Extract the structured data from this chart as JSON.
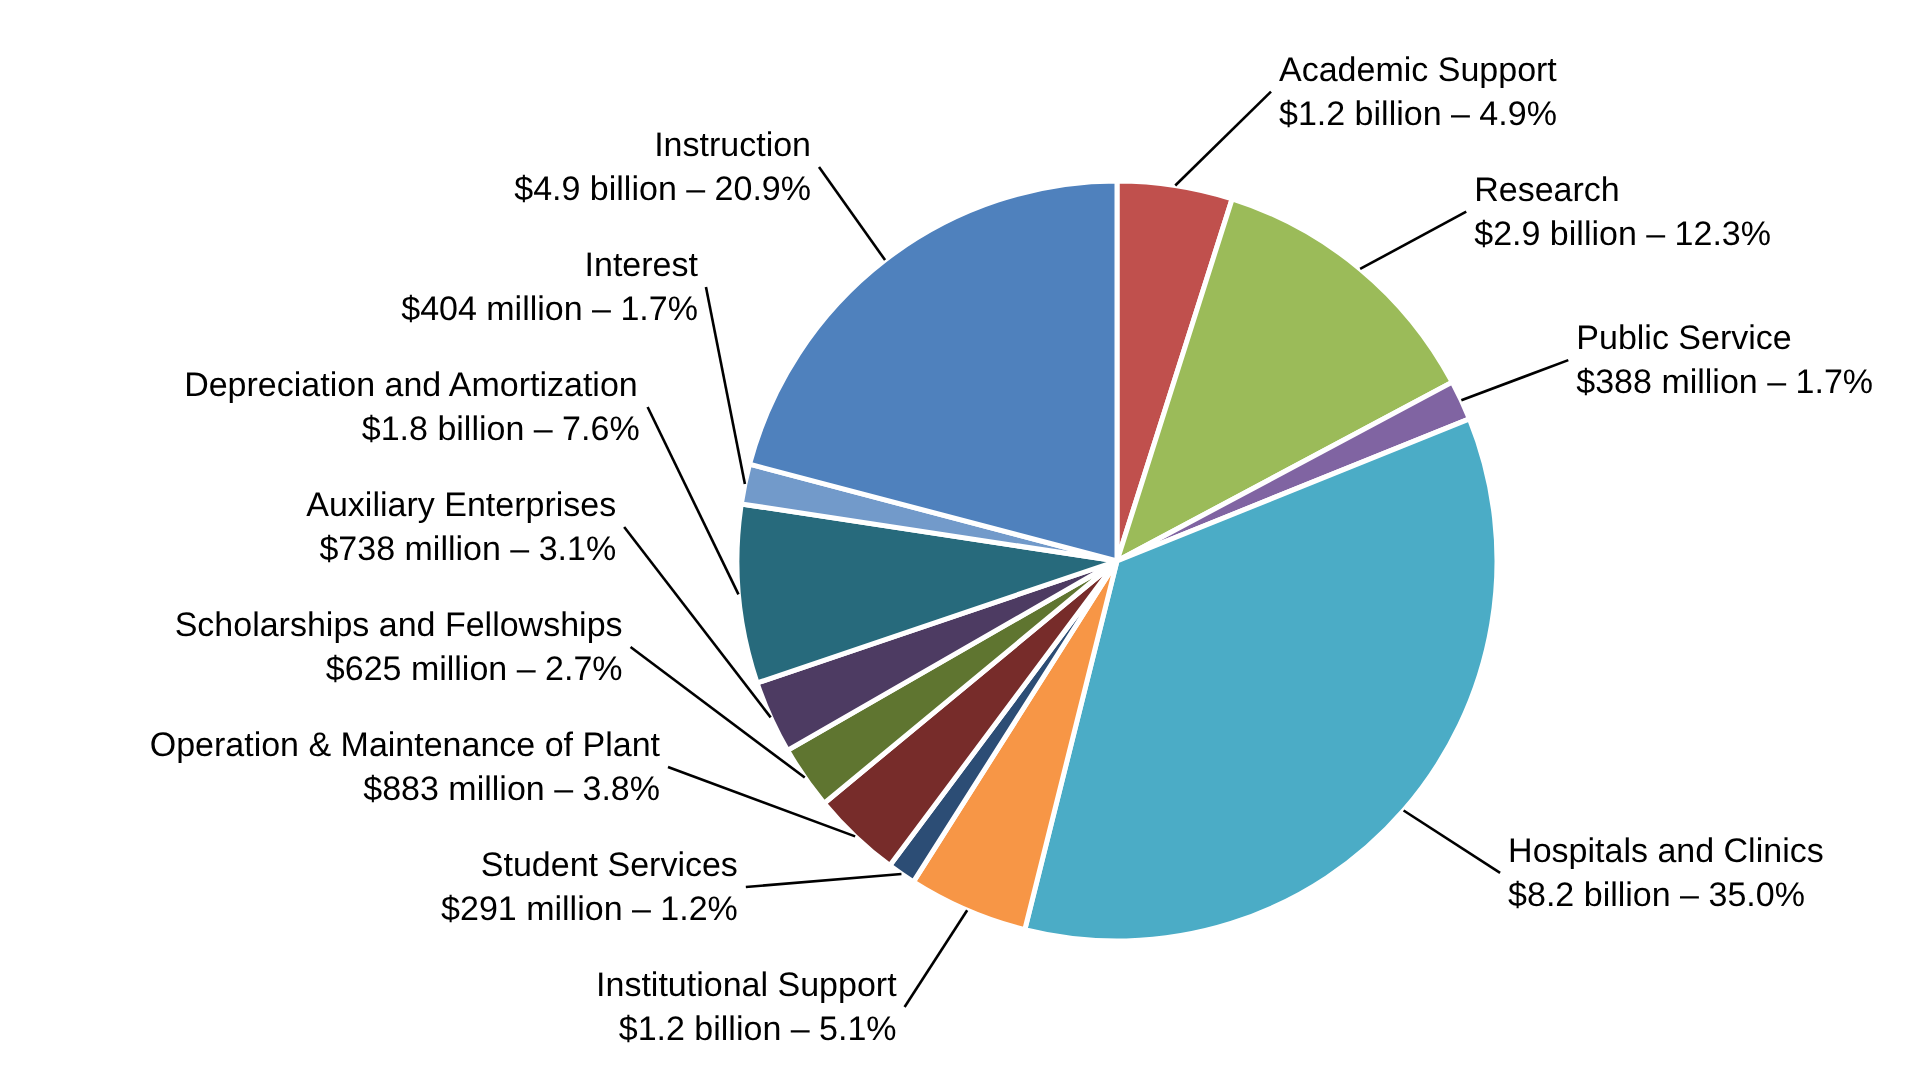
{
  "chart_data": {
    "type": "pie",
    "categories": [
      "Academic Support\n$1.2 billion – 4.9%",
      "Research\n$2.9 billion – 12.3%",
      "Public Service\n$388 million – 1.7%",
      "Hospitals and Clinics\n$8.2 billion – 35.0%",
      "Institutional Support\n$1.2 billion – 5.1%",
      "Student Services\n$291 million – 1.2%",
      "Operation & Maintenance of Plant\n$883 million – 3.8%",
      "Scholarships and Fellowships\n$625 million – 2.7%",
      "Auxiliary Enterprises\n$738 million – 3.1%",
      "Depreciation and Amortization\n$1.8 billion – 7.6%",
      "Interest\n$404 million – 1.7%",
      "Instruction\n$4.9 billion – 20.9%"
    ],
    "values": [
      4.9,
      12.3,
      1.7,
      35.0,
      5.1,
      1.2,
      3.8,
      2.7,
      3.1,
      7.6,
      1.7,
      20.9
    ],
    "colors": [
      "#c0504d",
      "#9bbb59",
      "#8064a2",
      "#4bacc6",
      "#f79646",
      "#2c4d75",
      "#772c2a",
      "#5f7530",
      "#4d3b62",
      "#276a7c",
      "#729aca",
      "#4f81bd"
    ]
  }
}
